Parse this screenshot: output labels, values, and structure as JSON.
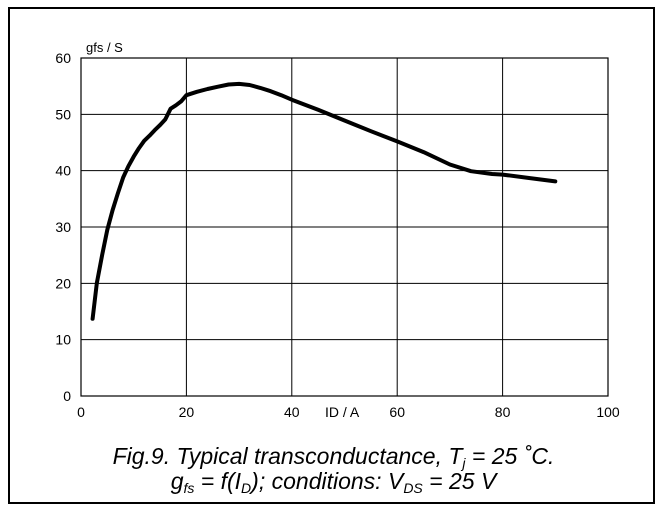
{
  "chart_data": {
    "type": "line",
    "ylabel": "gfs / S",
    "xlabel": "ID / A",
    "xlim": [
      0,
      100
    ],
    "ylim": [
      0,
      60
    ],
    "x_ticks": [
      0,
      20,
      40,
      60,
      80,
      100
    ],
    "y_ticks": [
      0,
      10,
      20,
      30,
      40,
      50,
      60
    ],
    "grid": true,
    "series": [
      {
        "color": "#000000",
        "points": [
          [
            2.2,
            13.7
          ],
          [
            3,
            20
          ],
          [
            4,
            25
          ],
          [
            5,
            29.5
          ],
          [
            6,
            33
          ],
          [
            7,
            36
          ],
          [
            8,
            38.8
          ],
          [
            9,
            40.8
          ],
          [
            10,
            42.5
          ],
          [
            11,
            44
          ],
          [
            12,
            45.3
          ],
          [
            13,
            46.2
          ],
          [
            14,
            47.2
          ],
          [
            15,
            48.1
          ],
          [
            16,
            49.1
          ],
          [
            17,
            51
          ],
          [
            18,
            51.6
          ],
          [
            19,
            52.3
          ],
          [
            20,
            53.4
          ],
          [
            22,
            54
          ],
          [
            24,
            54.5
          ],
          [
            26,
            54.9
          ],
          [
            28,
            55.3
          ],
          [
            30,
            55.4
          ],
          [
            32,
            55.2
          ],
          [
            34,
            54.7
          ],
          [
            36,
            54.1
          ],
          [
            38,
            53.4
          ],
          [
            40,
            52.6
          ],
          [
            45,
            50.8
          ],
          [
            50,
            48.9
          ],
          [
            55,
            47
          ],
          [
            60,
            45.2
          ],
          [
            65,
            43.3
          ],
          [
            70,
            41.1
          ],
          [
            74,
            39.9
          ],
          [
            78,
            39.4
          ],
          [
            80,
            39.3
          ],
          [
            85,
            38.7
          ],
          [
            90,
            38.1
          ]
        ]
      }
    ]
  },
  "caption": {
    "line1_prefix": "Fig.9.   Typical transconductance, T",
    "line1_sub": "j",
    "line1_suffix": " = 25 ˚C.",
    "line2_a": "g",
    "line2_a_sub": "fs",
    "line2_b": " = f(I",
    "line2_b_sub": "D",
    "line2_c": "); conditions: V",
    "line2_c_sub": "DS",
    "line2_d": " = 25 V"
  }
}
